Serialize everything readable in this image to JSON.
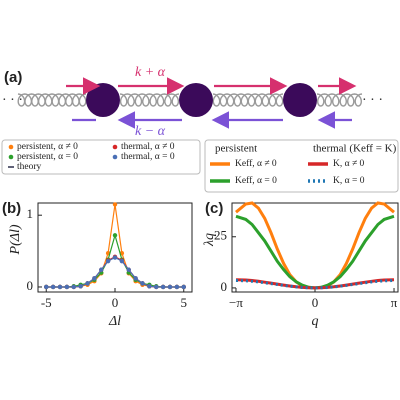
{
  "panel_a": {
    "label": "(a)",
    "upper_rate": "k + α",
    "lower_rate": "k − α",
    "ellipsis_left": "· · ·",
    "ellipsis_right": "· · ·"
  },
  "chart_data": [
    {
      "type": "line",
      "panel": "(b)",
      "xlabel": "Δl",
      "ylabel": "P(Δl)",
      "markers": true,
      "theory_label": "theory",
      "xlim": [
        -5.6,
        5.6
      ],
      "ylim": [
        -0.07,
        1.17
      ],
      "xticks": [
        -5,
        0,
        5
      ],
      "yticks": [
        0,
        1
      ],
      "x": [
        -5,
        -4.5,
        -4,
        -3.5,
        -3,
        -2.5,
        -2,
        -1.5,
        -1,
        -0.5,
        0,
        0.5,
        1,
        1.5,
        2,
        2.5,
        3,
        3.5,
        4,
        4.5,
        5
      ],
      "series": [
        {
          "name": "persistent, α ≠ 0",
          "color": "#ff7f0e",
          "values": [
            0,
            0,
            0,
            0,
            0,
            0.01,
            0.03,
            0.08,
            0.19,
            0.47,
            1.15,
            0.47,
            0.19,
            0.08,
            0.03,
            0.01,
            0,
            0,
            0,
            0,
            0
          ]
        },
        {
          "name": "persistent, α = 0",
          "color": "#2ca02c",
          "values": [
            0,
            0,
            0,
            0,
            0.01,
            0.03,
            0.05,
            0.1,
            0.2,
            0.38,
            0.72,
            0.38,
            0.2,
            0.1,
            0.05,
            0.03,
            0.01,
            0,
            0,
            0,
            0
          ]
        },
        {
          "name": "thermal, α ≠ 0",
          "color": "#d62728",
          "values": [
            0,
            0,
            0,
            0,
            0,
            0.01,
            0.05,
            0.12,
            0.24,
            0.37,
            0.42,
            0.37,
            0.24,
            0.12,
            0.05,
            0.01,
            0,
            0,
            0,
            0,
            0
          ]
        },
        {
          "name": "thermal, α = 0",
          "color": "#4a6fb5",
          "values": [
            0,
            0,
            0,
            0,
            0,
            0.01,
            0.05,
            0.12,
            0.24,
            0.36,
            0.41,
            0.36,
            0.24,
            0.12,
            0.05,
            0.01,
            0,
            0,
            0,
            0,
            0
          ]
        }
      ]
    },
    {
      "type": "line",
      "panel": "(c)",
      "xlabel": "q",
      "ylabel": "λq",
      "markers": false,
      "legend_titles": [
        "persistent",
        "thermal (Keff = K)"
      ],
      "xlim": [
        -3.3,
        3.3
      ],
      "ylim": [
        -2,
        41.5
      ],
      "xticks": [
        {
          "value": -3.1416,
          "label": "−π"
        },
        0,
        {
          "value": 3.1416,
          "label": "π"
        }
      ],
      "yticks": [
        0,
        25
      ],
      "x": [
        -3.14,
        -2.75,
        -2.5,
        -2.25,
        -2,
        -1.75,
        -1.5,
        -1.25,
        -1,
        -0.75,
        -0.5,
        -0.25,
        0,
        0.25,
        0.5,
        0.75,
        1,
        1.25,
        1.5,
        1.75,
        2,
        2.25,
        2.5,
        2.75,
        3.14
      ],
      "series": [
        {
          "name": "Keff, α ≠ 0",
          "color": "#ff7f0e",
          "dashed": false,
          "values": [
            37,
            41,
            41.5,
            39,
            34,
            27,
            19,
            12,
            6.5,
            3,
            1,
            0.2,
            0,
            0.2,
            1,
            3,
            6.5,
            12,
            19,
            27,
            34,
            39,
            41.5,
            41,
            37
          ]
        },
        {
          "name": "Keff, α = 0",
          "color": "#2ca02c",
          "dashed": false,
          "values": [
            35,
            33.5,
            31,
            27,
            23,
            18,
            13,
            9,
            5.5,
            3,
            1.3,
            0.3,
            0,
            0.3,
            1.3,
            3,
            5.5,
            9,
            13,
            18,
            23,
            27,
            31,
            33.5,
            35
          ]
        },
        {
          "name": "K, α ≠ 0",
          "color": "#d62728",
          "dashed": false,
          "values": [
            4,
            3.85,
            3.6,
            3.25,
            2.8,
            2.35,
            1.85,
            1.37,
            0.92,
            0.54,
            0.24,
            0.06,
            0,
            0.06,
            0.24,
            0.54,
            0.92,
            1.37,
            1.85,
            2.35,
            2.8,
            3.25,
            3.6,
            3.85,
            4
          ]
        },
        {
          "name": "K, α = 0",
          "color": "#1f77b4",
          "dashed": true,
          "values": [
            3.6,
            3.47,
            3.24,
            2.93,
            2.52,
            2.12,
            1.67,
            1.23,
            0.83,
            0.49,
            0.22,
            0.05,
            0,
            0.05,
            0.22,
            0.49,
            0.83,
            1.23,
            1.67,
            2.12,
            2.52,
            2.93,
            3.24,
            3.47,
            3.6
          ]
        }
      ]
    }
  ]
}
